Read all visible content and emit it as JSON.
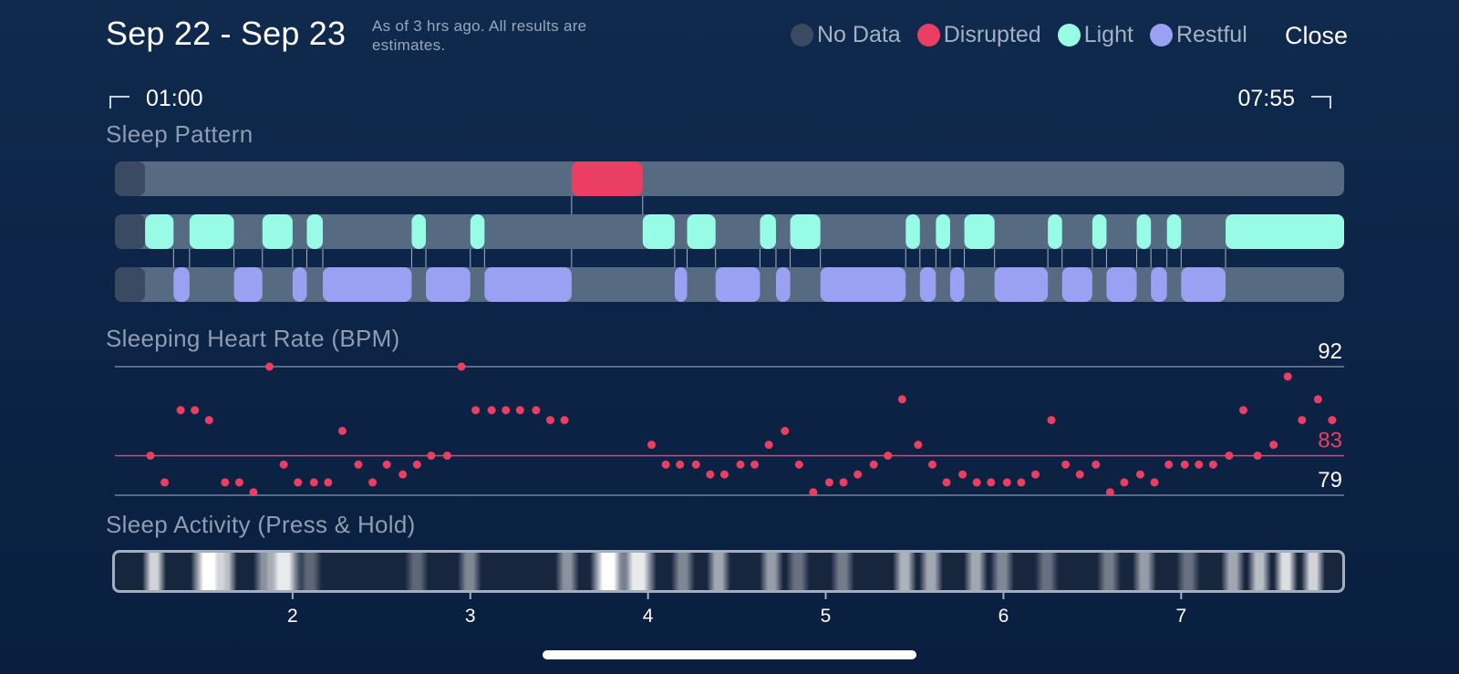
{
  "header": {
    "title": "Sep 22 - Sep 23",
    "subtitle": "As of 3 hrs ago. All results are estimates.",
    "close_label": "Close"
  },
  "legend": [
    {
      "label": "No Data",
      "color": "#3b4a63"
    },
    {
      "label": "Disrupted",
      "color": "#ea3e63"
    },
    {
      "label": "Light",
      "color": "#98fbe5"
    },
    {
      "label": "Restful",
      "color": "#9aa0f2"
    }
  ],
  "time_range": {
    "start": "01:00",
    "end": "07:55"
  },
  "sections": {
    "sleep_pattern": "Sleep Pattern",
    "heart_rate": "Sleeping Heart Rate (BPM)",
    "activity": "Sleep Activity (Press & Hold)"
  },
  "colors": {
    "no_data": "#3b4a63",
    "disrupted": "#ea3e63",
    "light": "#98fbe5",
    "restful": "#9aa0f2",
    "track": "#566a82"
  },
  "chart_data": [
    {
      "type": "timeline",
      "title": "Sleep Pattern",
      "x_unit": "hours",
      "xlim": [
        1.0,
        7.917
      ],
      "lanes": [
        "Disrupted",
        "Light",
        "Restful"
      ],
      "no_data": [
        [
          1.0,
          1.17
        ]
      ],
      "segments": {
        "Disrupted": [
          [
            3.57,
            3.97
          ]
        ],
        "Light": [
          [
            1.17,
            1.33
          ],
          [
            1.42,
            1.67
          ],
          [
            1.83,
            2.0
          ],
          [
            2.08,
            2.17
          ],
          [
            2.67,
            2.75
          ],
          [
            3.0,
            3.08
          ],
          [
            3.97,
            4.15
          ],
          [
            4.22,
            4.38
          ],
          [
            4.63,
            4.72
          ],
          [
            4.8,
            4.97
          ],
          [
            5.45,
            5.53
          ],
          [
            5.62,
            5.7
          ],
          [
            5.78,
            5.95
          ],
          [
            6.25,
            6.33
          ],
          [
            6.5,
            6.58
          ],
          [
            6.75,
            6.83
          ],
          [
            6.92,
            7.0
          ],
          [
            7.25,
            7.917
          ]
        ],
        "Restful": [
          [
            1.33,
            1.42
          ],
          [
            1.67,
            1.83
          ],
          [
            2.0,
            2.08
          ],
          [
            2.17,
            2.67
          ],
          [
            2.75,
            3.0
          ],
          [
            3.08,
            3.57
          ],
          [
            4.15,
            4.22
          ],
          [
            4.38,
            4.63
          ],
          [
            4.72,
            4.8
          ],
          [
            4.97,
            5.45
          ],
          [
            5.53,
            5.62
          ],
          [
            5.7,
            5.78
          ],
          [
            5.95,
            6.25
          ],
          [
            6.33,
            6.5
          ],
          [
            6.58,
            6.75
          ],
          [
            6.83,
            6.92
          ],
          [
            7.0,
            7.25
          ]
        ]
      }
    },
    {
      "type": "scatter",
      "title": "Sleeping Heart Rate (BPM)",
      "ylim": [
        79,
        92
      ],
      "reference_lines": [
        {
          "value": 92,
          "label": "92"
        },
        {
          "value": 83,
          "label": "83"
        },
        {
          "value": 79,
          "label": "79"
        }
      ],
      "x": [
        1.2,
        1.28,
        1.37,
        1.45,
        1.53,
        1.62,
        1.7,
        1.78,
        1.87,
        1.95,
        2.03,
        2.12,
        2.2,
        2.28,
        2.37,
        2.45,
        2.53,
        2.62,
        2.7,
        2.78,
        2.87,
        2.95,
        3.03,
        3.12,
        3.2,
        3.28,
        3.37,
        3.45,
        3.53,
        4.02,
        4.1,
        4.18,
        4.27,
        4.35,
        4.43,
        4.52,
        4.6,
        4.68,
        4.77,
        4.85,
        4.93,
        5.02,
        5.1,
        5.18,
        5.27,
        5.35,
        5.43,
        5.52,
        5.6,
        5.68,
        5.77,
        5.85,
        5.93,
        6.02,
        6.1,
        6.18,
        6.27,
        6.35,
        6.43,
        6.52,
        6.6,
        6.68,
        6.77,
        6.85,
        6.93,
        7.02,
        7.1,
        7.18,
        7.27,
        7.35,
        7.43,
        7.52,
        7.6,
        7.68,
        7.77,
        7.85
      ],
      "values": [
        83,
        80.3,
        87.6,
        87.6,
        86.6,
        80.3,
        80.3,
        79.3,
        92,
        82.1,
        80.3,
        80.3,
        80.3,
        85.5,
        82.1,
        80.3,
        82.1,
        81.1,
        82.1,
        83,
        83,
        92,
        87.6,
        87.6,
        87.6,
        87.6,
        87.6,
        86.6,
        86.6,
        84.1,
        82.1,
        82.1,
        82.1,
        81.1,
        81.1,
        82.1,
        82.1,
        84.1,
        85.5,
        82.1,
        79.3,
        80.3,
        80.3,
        81.1,
        82.1,
        83,
        88.7,
        84.1,
        82.1,
        80.3,
        81.1,
        80.3,
        80.3,
        80.3,
        80.3,
        81.1,
        86.6,
        82.1,
        81.1,
        82.1,
        79.3,
        80.3,
        81.1,
        80.3,
        82.1,
        82.1,
        82.1,
        82.1,
        83,
        87.6,
        83,
        84.1,
        91,
        86.6,
        88.7,
        86.6
      ]
    },
    {
      "type": "heatmap",
      "title": "Sleep Activity (Press & Hold)",
      "xlim": [
        1.0,
        7.917
      ],
      "x_ticks": [
        "2",
        "3",
        "4",
        "5",
        "6",
        "7"
      ],
      "x_tick_values": [
        2,
        3,
        4,
        5,
        6,
        7
      ],
      "intensity": [
        {
          "x": 1.22,
          "level": 0.8
        },
        {
          "x": 1.53,
          "level": 1.0
        },
        {
          "x": 1.62,
          "level": 0.7
        },
        {
          "x": 1.85,
          "level": 0.5
        },
        {
          "x": 1.95,
          "level": 0.9
        },
        {
          "x": 2.1,
          "level": 0.3
        },
        {
          "x": 2.7,
          "level": 0.3
        },
        {
          "x": 3.0,
          "level": 0.45
        },
        {
          "x": 3.55,
          "level": 0.5
        },
        {
          "x": 3.78,
          "level": 1.0
        },
        {
          "x": 3.95,
          "level": 0.9
        },
        {
          "x": 4.2,
          "level": 0.45
        },
        {
          "x": 4.4,
          "level": 0.6
        },
        {
          "x": 4.7,
          "level": 0.55
        },
        {
          "x": 4.85,
          "level": 0.35
        },
        {
          "x": 5.1,
          "level": 0.4
        },
        {
          "x": 5.45,
          "level": 0.65
        },
        {
          "x": 5.6,
          "level": 0.6
        },
        {
          "x": 5.85,
          "level": 0.6
        },
        {
          "x": 6.0,
          "level": 0.45
        },
        {
          "x": 6.25,
          "level": 0.35
        },
        {
          "x": 6.6,
          "level": 0.4
        },
        {
          "x": 6.8,
          "level": 0.55
        },
        {
          "x": 7.05,
          "level": 0.35
        },
        {
          "x": 7.3,
          "level": 0.6
        },
        {
          "x": 7.45,
          "level": 0.7
        },
        {
          "x": 7.6,
          "level": 0.85
        },
        {
          "x": 7.75,
          "level": 0.8
        }
      ]
    }
  ]
}
